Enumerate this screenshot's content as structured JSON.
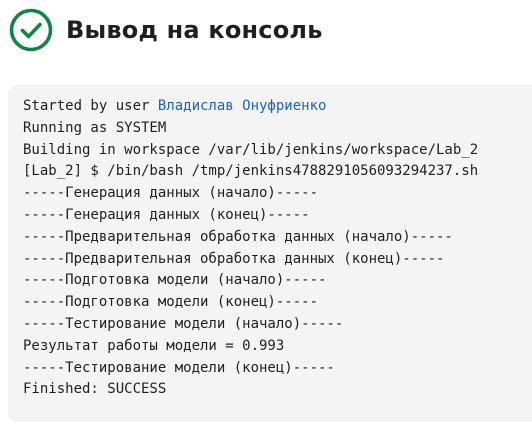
{
  "header": {
    "title": "Вывод на консоль",
    "status_icon": "success-check-icon",
    "status_color": "#138347"
  },
  "console": {
    "started_prefix": "Started by user ",
    "user_name": "Владислав Онуфриенко",
    "lines": [
      "Running as SYSTEM",
      "Building in workspace /var/lib/jenkins/workspace/Lab_2",
      "[Lab_2] $ /bin/bash /tmp/jenkins4788291056093294237.sh",
      "-----Генерация данных (начало)-----",
      "-----Генерация данных (конец)-----",
      "-----Предварительная обработка данных (начало)-----",
      "-----Предварительная обработка данных (конец)-----",
      "-----Подготовка модели (начало)-----",
      "-----Подготовка модели (конец)-----",
      "-----Тестирование модели (начало)-----",
      "Результат работы модели = 0.993",
      "-----Тестирование модели (конец)-----",
      "Finished: SUCCESS"
    ]
  }
}
